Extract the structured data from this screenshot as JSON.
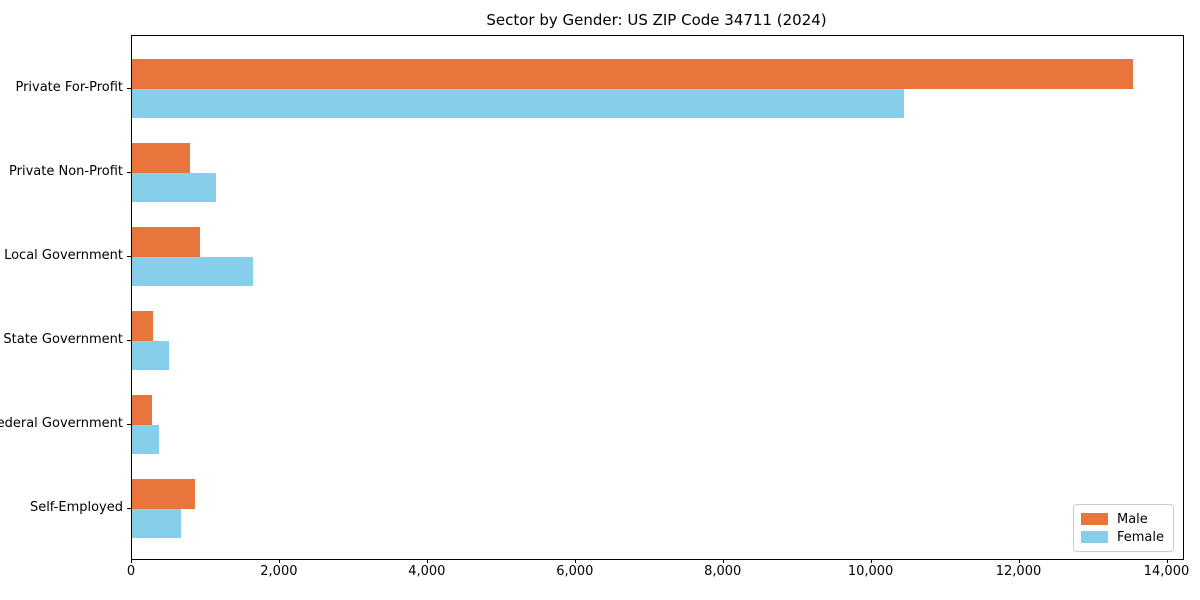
{
  "title": "Sector by Gender: US ZIP Code 34711 (2024)",
  "legend": {
    "items": [
      {
        "label": "Male",
        "color": "#e8763c"
      },
      {
        "label": "Female",
        "color": "#87ceeb"
      }
    ]
  },
  "chart_data": {
    "type": "bar",
    "orientation": "horizontal",
    "title": "Sector by Gender: US ZIP Code 34711 (2024)",
    "categories": [
      "Private For-Profit",
      "Private Non-Profit",
      "Local Government",
      "State Government",
      "Federal Government",
      "Self-Employed"
    ],
    "series": [
      {
        "name": "Male",
        "color": "#e8763c",
        "values": [
          13530,
          790,
          920,
          290,
          270,
          850
        ]
      },
      {
        "name": "Female",
        "color": "#87ceeb",
        "values": [
          10440,
          1140,
          1630,
          500,
          370,
          660
        ]
      }
    ],
    "xlabel": "",
    "ylabel": "",
    "xlim": [
      0,
      14210
    ],
    "x_ticks": [
      0,
      2000,
      4000,
      6000,
      8000,
      10000,
      12000,
      14000
    ],
    "x_tick_labels": [
      "0",
      "2,000",
      "4,000",
      "6,000",
      "8,000",
      "10,000",
      "12,000",
      "14,000"
    ],
    "legend_position": "lower right",
    "grid": false
  }
}
